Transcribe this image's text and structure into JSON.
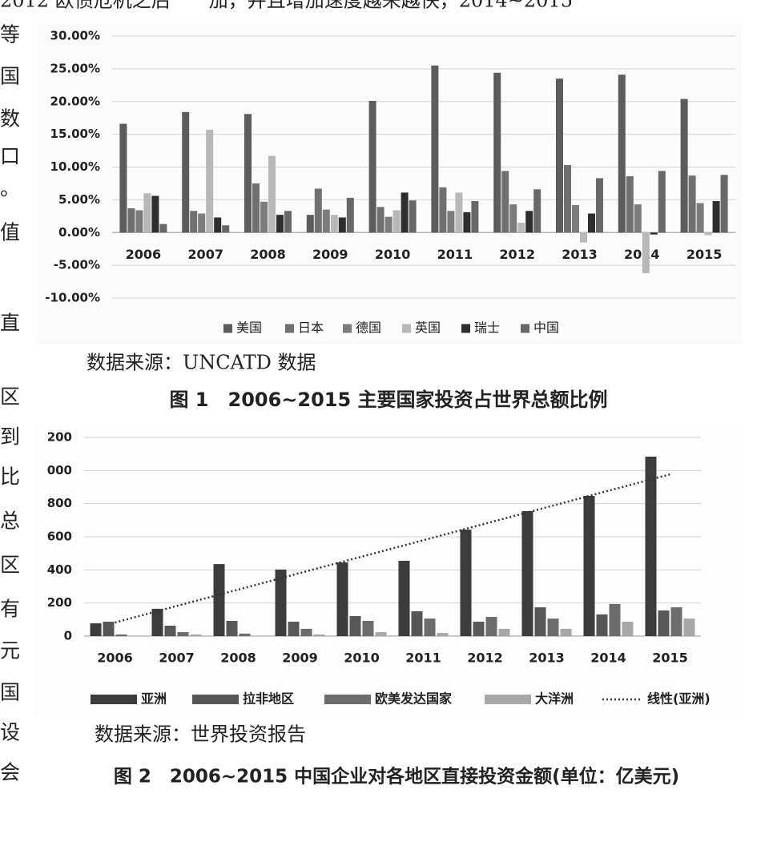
{
  "page_text": {
    "top_line": "2012 欧债危机之后　　加，并且增加速度越来越快，2014~2015",
    "margin_chars": [
      "等",
      "国",
      "数",
      "口",
      "。",
      "值",
      "直",
      "区",
      "到",
      "比",
      "总",
      "区",
      "有",
      "元",
      "国",
      "设",
      "会"
    ]
  },
  "captions": [
    {
      "source": "数据来源：UNCATD 数据",
      "figure": "图 1　2006~2015 主要国家投资占世界总额比例"
    },
    {
      "source": "数据来源：世界投资报告",
      "figure": "图 2　2006~2015 中国企业对各地区直接投资金额(单位：亿美元)"
    }
  ],
  "chart_data": [
    {
      "type": "bar",
      "categories": [
        "2006",
        "2007",
        "2008",
        "2009",
        "2010",
        "2011",
        "2012",
        "2013",
        "2014",
        "2015"
      ],
      "series": [
        {
          "name": "美国",
          "color": "#5c5c5c",
          "values": [
            16.6,
            18.4,
            18.1,
            2.7,
            20.1,
            25.5,
            24.4,
            23.5,
            24.1,
            20.4
          ]
        },
        {
          "name": "日本",
          "color": "#707070",
          "values": [
            3.7,
            3.3,
            7.5,
            6.7,
            3.9,
            6.9,
            9.4,
            10.3,
            8.6,
            8.7
          ]
        },
        {
          "name": "德国",
          "color": "#7c7c7c",
          "values": [
            3.4,
            2.9,
            4.7,
            3.5,
            2.4,
            3.3,
            4.3,
            4.2,
            4.3,
            4.5
          ]
        },
        {
          "name": "英国",
          "color": "#b8b8b8",
          "values": [
            6.0,
            15.7,
            11.7,
            2.7,
            3.4,
            6.1,
            1.5,
            -1.5,
            -6.2,
            -0.4
          ]
        },
        {
          "name": "瑞士",
          "color": "#2e2e2e",
          "values": [
            5.6,
            2.3,
            2.7,
            2.3,
            6.1,
            3.1,
            3.3,
            2.9,
            -0.3,
            4.8
          ]
        },
        {
          "name": "中国",
          "color": "#686868",
          "values": [
            1.3,
            1.1,
            3.3,
            5.3,
            4.9,
            4.8,
            6.6,
            8.3,
            9.4,
            8.8
          ]
        }
      ],
      "ylim": [
        -10,
        30
      ],
      "yticks": [
        {
          "value": -10,
          "label": "-10.00%"
        },
        {
          "value": -5,
          "label": "-5.00%"
        },
        {
          "value": 0,
          "label": "0.00%"
        },
        {
          "value": 5,
          "label": "5.00%"
        },
        {
          "value": 10,
          "label": "10.00%"
        },
        {
          "value": 15,
          "label": "15.00%"
        },
        {
          "value": 20,
          "label": "20.00%"
        },
        {
          "value": 25,
          "label": "25.00%"
        },
        {
          "value": 30,
          "label": "30.00%"
        }
      ],
      "grid": true,
      "legend": "bottom"
    },
    {
      "type": "bar",
      "categories": [
        "2006",
        "2007",
        "2008",
        "2009",
        "2010",
        "2011",
        "2012",
        "2013",
        "2014",
        "2015"
      ],
      "series": [
        {
          "name": "亚洲",
          "color": "#3c3c3c",
          "values": [
            77,
            165,
            435,
            402,
            445,
            455,
            643,
            755,
            847,
            1084
          ]
        },
        {
          "name": "拉非地区",
          "color": "#575757",
          "values": [
            87,
            63,
            92,
            87,
            121,
            150,
            87,
            174,
            131,
            155
          ]
        },
        {
          "name": "欧美发达国家",
          "color": "#6c6c6c",
          "values": [
            10,
            24,
            15,
            44,
            92,
            106,
            116,
            106,
            194,
            174
          ]
        },
        {
          "name": "大洋洲",
          "color": "#a8a8a8",
          "values": [
            0,
            10,
            0,
            10,
            24,
            19,
            44,
            44,
            87,
            106
          ]
        },
        {
          "name": "线性(亚洲)",
          "color": "#333333",
          "type": "trend",
          "values": [
            82,
            182,
            281,
            381,
            480,
            579,
            679,
            778,
            878,
            977
          ]
        }
      ],
      "ylim": [
        0,
        1200
      ],
      "yticks": [
        0,
        200,
        400,
        600,
        800,
        {
          "value": 1000,
          "label": "000"
        },
        {
          "value": 1200,
          "label": "200"
        }
      ],
      "grid": true,
      "legend": "bottom"
    }
  ]
}
